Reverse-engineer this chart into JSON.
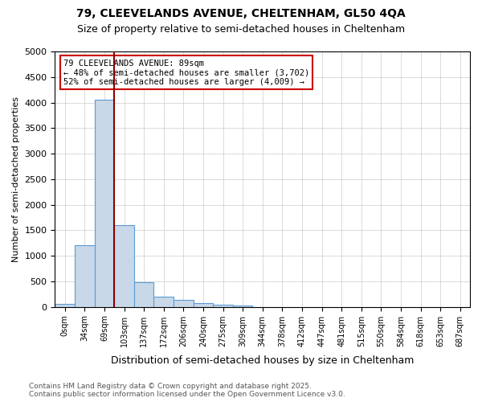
{
  "title1": "79, CLEEVELANDS AVENUE, CHELTENHAM, GL50 4QA",
  "title2": "Size of property relative to semi-detached houses in Cheltenham",
  "xlabel": "Distribution of semi-detached houses by size in Cheltenham",
  "ylabel": "Number of semi-detached properties",
  "bin_labels": [
    "0sqm",
    "34sqm",
    "69sqm",
    "103sqm",
    "137sqm",
    "172sqm",
    "206sqm",
    "240sqm",
    "275sqm",
    "309sqm",
    "344sqm",
    "378sqm",
    "412sqm",
    "447sqm",
    "481sqm",
    "515sqm",
    "550sqm",
    "584sqm",
    "618sqm",
    "653sqm",
    "687sqm"
  ],
  "bin_values": [
    50,
    1200,
    4050,
    1600,
    480,
    200,
    130,
    70,
    40,
    20,
    0,
    0,
    0,
    0,
    0,
    0,
    0,
    0,
    0,
    0,
    0
  ],
  "bar_color": "#c8d8e8",
  "bar_edge_color": "#5b9bd5",
  "vline_x": 2.48,
  "vline_color": "#8b0000",
  "annotation_text": "79 CLEEVELANDS AVENUE: 89sqm\n← 48% of semi-detached houses are smaller (3,702)\n52% of semi-detached houses are larger (4,009) →",
  "annotation_box_color": "#ffffff",
  "annotation_box_edge": "#cc0000",
  "footer": "Contains HM Land Registry data © Crown copyright and database right 2025.\nContains public sector information licensed under the Open Government Licence v3.0.",
  "ylim": [
    0,
    5000
  ],
  "yticks": [
    0,
    500,
    1000,
    1500,
    2000,
    2500,
    3000,
    3500,
    4000,
    4500,
    5000
  ],
  "background_color": "#ffffff",
  "grid_color": "#cccccc"
}
